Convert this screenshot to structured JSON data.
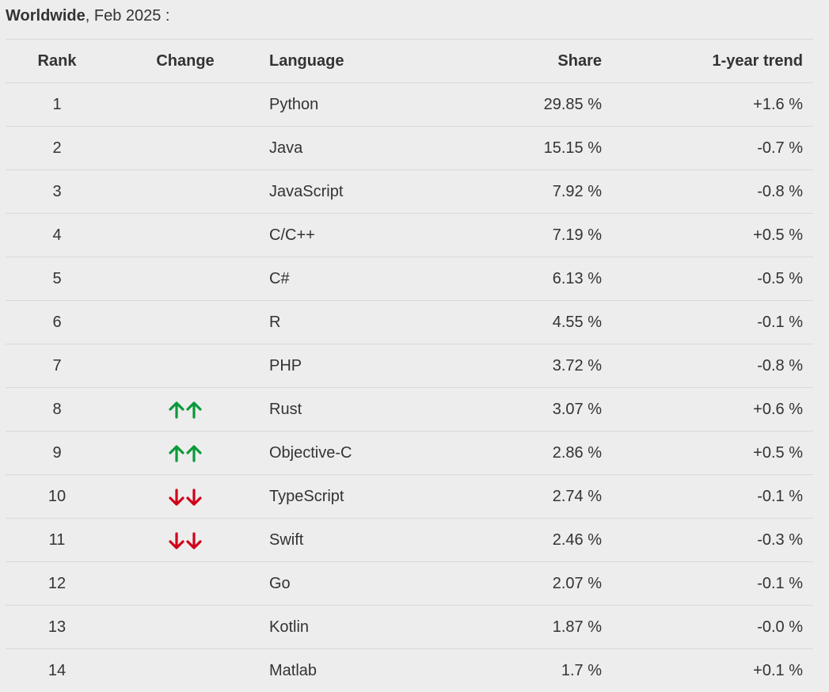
{
  "caption": {
    "region": "Worldwide",
    "rest": ", Feb 2025 :"
  },
  "colors": {
    "up": "#0a9a3a",
    "down": "#d0021b"
  },
  "headers": {
    "rank": "Rank",
    "change": "Change",
    "language": "Language",
    "share": "Share",
    "trend": "1-year trend"
  },
  "rows": [
    {
      "rank": "1",
      "change": "",
      "language": "Python",
      "share": "29.85 %",
      "trend": "+1.6 %"
    },
    {
      "rank": "2",
      "change": "",
      "language": "Java",
      "share": "15.15 %",
      "trend": "-0.7 %"
    },
    {
      "rank": "3",
      "change": "",
      "language": "JavaScript",
      "share": "7.92 %",
      "trend": "-0.8 %"
    },
    {
      "rank": "4",
      "change": "",
      "language": "C/C++",
      "share": "7.19 %",
      "trend": "+0.5 %"
    },
    {
      "rank": "5",
      "change": "",
      "language": "C#",
      "share": "6.13 %",
      "trend": "-0.5 %"
    },
    {
      "rank": "6",
      "change": "",
      "language": "R",
      "share": "4.55 %",
      "trend": "-0.1 %"
    },
    {
      "rank": "7",
      "change": "",
      "language": "PHP",
      "share": "3.72 %",
      "trend": "-0.8 %"
    },
    {
      "rank": "8",
      "change": "double-up-arrow-icon",
      "language": "Rust",
      "share": "3.07 %",
      "trend": "+0.6 %"
    },
    {
      "rank": "9",
      "change": "double-up-arrow-icon",
      "language": "Objective-C",
      "share": "2.86 %",
      "trend": "+0.5 %"
    },
    {
      "rank": "10",
      "change": "double-down-arrow-icon",
      "language": "TypeScript",
      "share": "2.74 %",
      "trend": "-0.1 %"
    },
    {
      "rank": "11",
      "change": "double-down-arrow-icon",
      "language": "Swift",
      "share": "2.46 %",
      "trend": "-0.3 %"
    },
    {
      "rank": "12",
      "change": "",
      "language": "Go",
      "share": "2.07 %",
      "trend": "-0.1 %"
    },
    {
      "rank": "13",
      "change": "",
      "language": "Kotlin",
      "share": "1.87 %",
      "trend": "-0.0 %"
    },
    {
      "rank": "14",
      "change": "",
      "language": "Matlab",
      "share": "1.7 %",
      "trend": "+0.1 %"
    }
  ]
}
